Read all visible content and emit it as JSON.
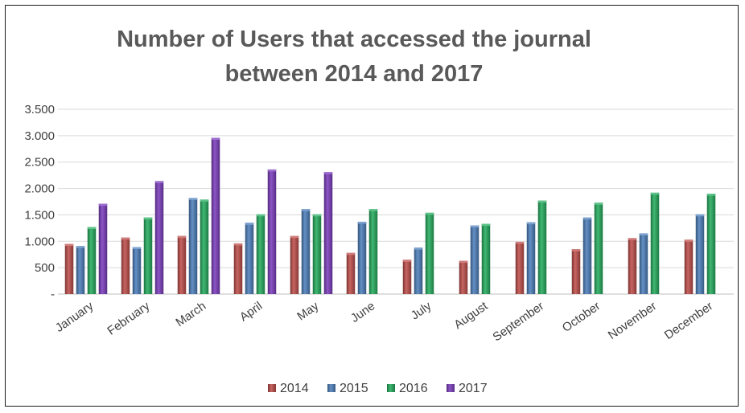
{
  "chart_data": {
    "type": "bar",
    "title": "Number of Users that accessed the journal between 2014 and 2017",
    "title_lines": [
      "Number of Users that accessed the journal",
      "between 2014 and 2017"
    ],
    "xlabel": "",
    "ylabel": "",
    "ylim": [
      0,
      3500
    ],
    "yticks": [
      0,
      500,
      1000,
      1500,
      2000,
      2500,
      3000,
      3500
    ],
    "ytick_labels": [
      "-",
      "500",
      "1.000",
      "1.500",
      "2.000",
      "2.500",
      "3.000",
      "3.500"
    ],
    "grid": true,
    "legend_position": "bottom",
    "categories": [
      "January",
      "February",
      "March",
      "April",
      "May",
      "June",
      "July",
      "August",
      "September",
      "October",
      "November",
      "December"
    ],
    "series": [
      {
        "name": "2014",
        "color": "#c0504d",
        "values": [
          950,
          1070,
          1100,
          960,
          1100,
          780,
          650,
          630,
          990,
          850,
          1060,
          1030
        ]
      },
      {
        "name": "2015",
        "color": "#4f81bd",
        "values": [
          910,
          890,
          1820,
          1350,
          1610,
          1370,
          880,
          1300,
          1360,
          1450,
          1150,
          1510
        ]
      },
      {
        "name": "2016",
        "color": "#27ae60",
        "values": [
          1270,
          1450,
          1790,
          1510,
          1510,
          1610,
          1540,
          1330,
          1770,
          1730,
          1920,
          1900
        ]
      },
      {
        "name": "2017",
        "color": "#7e3fbf",
        "values": [
          1710,
          2140,
          2960,
          2360,
          2310,
          null,
          null,
          null,
          null,
          null,
          null,
          null
        ]
      }
    ]
  }
}
